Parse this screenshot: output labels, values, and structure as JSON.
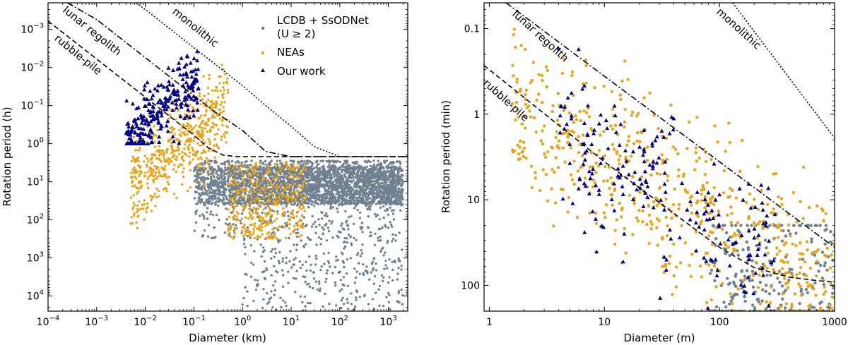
{
  "colors": {
    "lcdb": "#708090",
    "neas": "#e8a317",
    "ours": "#000080",
    "frame": "#000000"
  },
  "chart_data": [
    {
      "type": "scatter",
      "xlabel": "Diameter (km)",
      "ylabel": "Rotation period (h)",
      "x_scale": "log",
      "y_scale": "log",
      "y_inverted": true,
      "xlim": [
        0.0001,
        2500
      ],
      "ylim": [
        0.0002,
        25000
      ],
      "x_ticks": [
        {
          "v": 0.0001,
          "base": "10",
          "exp": "−4"
        },
        {
          "v": 0.001,
          "base": "10",
          "exp": "−3"
        },
        {
          "v": 0.01,
          "base": "10",
          "exp": "−2"
        },
        {
          "v": 0.1,
          "base": "10",
          "exp": "−1"
        },
        {
          "v": 1,
          "base": "10",
          "exp": "0"
        },
        {
          "v": 10,
          "base": "10",
          "exp": "1"
        },
        {
          "v": 100,
          "base": "10",
          "exp": "2"
        },
        {
          "v": 1000,
          "base": "10",
          "exp": "3"
        }
      ],
      "y_ticks": [
        {
          "v": 0.001,
          "base": "10",
          "exp": "−3"
        },
        {
          "v": 0.01,
          "base": "10",
          "exp": "−2"
        },
        {
          "v": 0.1,
          "base": "10",
          "exp": "−1"
        },
        {
          "v": 1,
          "base": "10",
          "exp": "0"
        },
        {
          "v": 10,
          "base": "10",
          "exp": "1"
        },
        {
          "v": 100,
          "base": "10",
          "exp": "2"
        },
        {
          "v": 1000,
          "base": "10",
          "exp": "3"
        },
        {
          "v": 10000,
          "base": "10",
          "exp": "4"
        }
      ],
      "legend": {
        "placement": "top-center",
        "entries": [
          {
            "label": "LCDB + SsODNet",
            "label2": "(U ≥ 2)",
            "marker": "circle",
            "color": "#708090"
          },
          {
            "label": "NEAs",
            "label2": "",
            "marker": "circle",
            "color": "#e8a317"
          },
          {
            "label": "Our work",
            "label2": "",
            "marker": "triangle",
            "color": "#000080"
          }
        ]
      },
      "curves": [
        {
          "label": "lunar regolith",
          "style": "dashdot",
          "x": [
            0.00025,
            0.001,
            0.01,
            0.1,
            0.3,
            1,
            3,
            10,
            2500
          ],
          "y": [
            0.0002,
            0.00055,
            0.0055,
            0.055,
            0.16,
            0.45,
            1.6,
            2.2,
            2.2
          ]
        },
        {
          "label": "rubble-pile",
          "style": "dashed",
          "x": [
            0.0001,
            0.001,
            0.01,
            0.1,
            0.2,
            0.4,
            0.8,
            2,
            2500
          ],
          "y": [
            0.0006,
            0.006,
            0.06,
            0.6,
            1.3,
            2.0,
            2.2,
            2.2,
            2.2
          ]
        },
        {
          "label": "monolithic",
          "style": "dotted",
          "x": [
            0.0065,
            0.01,
            0.1,
            1,
            3,
            10,
            30,
            100
          ],
          "y": [
            0.0002,
            0.0003,
            0.003,
            0.03,
            0.1,
            0.35,
            1.2,
            2.2
          ]
        }
      ],
      "series": [
        {
          "name": "LCDB + SsODNet",
          "marker": "circle",
          "color": "#708090",
          "n": 3600,
          "cloud_logx": [
            -1.0,
            3.3
          ],
          "cloud_logy": [
            0.45,
            4.4
          ],
          "core_logy": [
            0.6,
            1.6
          ]
        },
        {
          "name": "NEAs",
          "marker": "circle",
          "color": "#e8a317",
          "n": 950,
          "cloud_logx": [
            -2.3,
            1.3
          ],
          "cloud_logy": [
            -2.5,
            3.0
          ]
        },
        {
          "name": "Our work",
          "marker": "triangle",
          "color": "#000080",
          "n": 260,
          "cloud_logx": [
            -2.4,
            -0.9
          ],
          "cloud_logy": [
            -2.9,
            0.0
          ]
        }
      ],
      "curve_labels": [
        "lunar regolith",
        "rubble-pile",
        "monolithic"
      ]
    },
    {
      "type": "scatter",
      "xlabel": "Diameter (m)",
      "ylabel": "Rotation period (min)",
      "x_scale": "log",
      "y_scale": "log",
      "y_inverted": true,
      "xlim": [
        0.9,
        1000
      ],
      "ylim": [
        0.05,
        200
      ],
      "x_ticks": [
        {
          "v": 1,
          "label": "1"
        },
        {
          "v": 10,
          "label": "10"
        },
        {
          "v": 100,
          "label": "100"
        },
        {
          "v": 1000,
          "label": "1000"
        }
      ],
      "y_ticks": [
        {
          "v": 0.1,
          "label": "0.1"
        },
        {
          "v": 1,
          "label": "1"
        },
        {
          "v": 10,
          "label": "10"
        },
        {
          "v": 100,
          "label": "100"
        }
      ],
      "curves": [
        {
          "label": "lunar regolith",
          "style": "dashdot",
          "x": [
            1.4,
            10,
            100,
            1000
          ],
          "y": [
            0.05,
            0.36,
            3.6,
            36
          ]
        },
        {
          "label": "rubble-pile",
          "style": "dashed",
          "x": [
            0.9,
            10,
            100,
            200,
            400,
            700,
            1000
          ],
          "y": [
            0.27,
            3.6,
            36,
            62,
            80,
            88,
            92
          ]
        },
        {
          "label": "monolithic",
          "style": "dotted",
          "x": [
            130,
            1000
          ],
          "y": [
            0.05,
            1.9
          ]
        }
      ],
      "series": [
        {
          "name": "LCDB + SsODNet",
          "marker": "circle",
          "color": "#708090",
          "n": 260,
          "cloud_logx": [
            1.9,
            3.0
          ],
          "cloud_logy": [
            1.3,
            2.3
          ]
        },
        {
          "name": "NEAs",
          "marker": "circle",
          "color": "#e8a317",
          "n": 620,
          "cloud_logx": [
            0.2,
            3.0
          ],
          "cloud_logy": [
            -1.3,
            2.3
          ]
        },
        {
          "name": "Our work",
          "marker": "triangle",
          "color": "#000080",
          "n": 210,
          "cloud_logx": [
            0.6,
            2.5
          ],
          "cloud_logy": [
            -1.1,
            2.3
          ]
        }
      ],
      "curve_labels": [
        "lunar regolith",
        "rubble-pile",
        "monolithic"
      ]
    }
  ]
}
